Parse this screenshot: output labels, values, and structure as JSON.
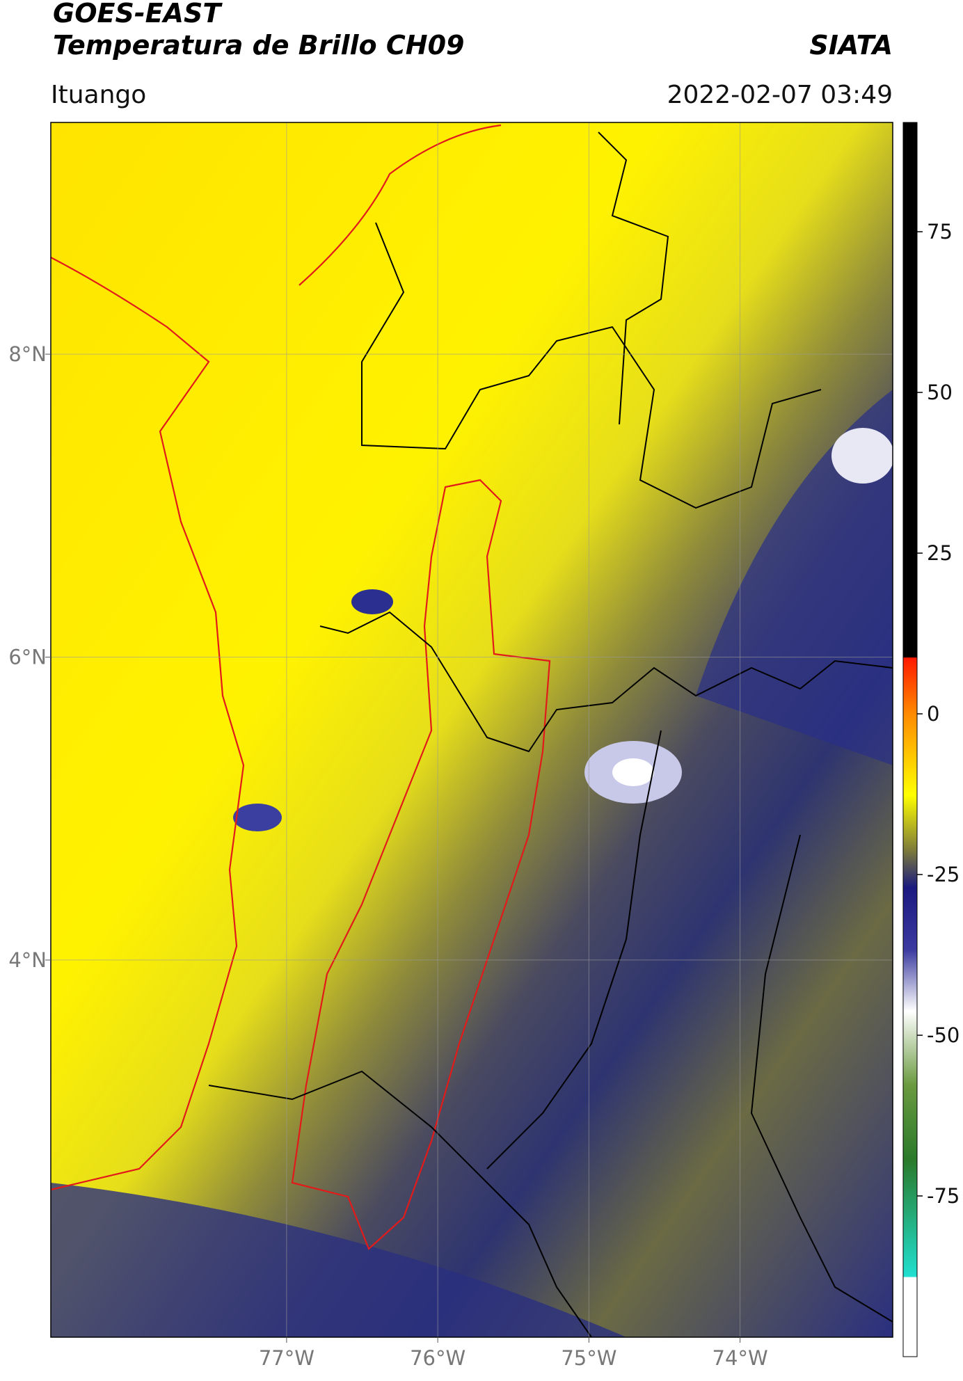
{
  "header": {
    "title": "GOES-EAST",
    "subtitle": "Temperatura de Brillo CH09",
    "source": "SIATA",
    "location": "Ituango",
    "datetime": "2022-02-07 03:49"
  },
  "map": {
    "xlim": [
      -78.56,
      -72.99
    ],
    "ylim": [
      1.51,
      9.53
    ],
    "xticks": [
      {
        "value": -77,
        "label": "77°W"
      },
      {
        "value": -76,
        "label": "76°W"
      },
      {
        "value": -75,
        "label": "75°W"
      },
      {
        "value": -74,
        "label": "74°W"
      }
    ],
    "yticks": [
      {
        "value": 8,
        "label": "8°N"
      },
      {
        "value": 6,
        "label": "6°N"
      },
      {
        "value": 4,
        "label": "4°N"
      }
    ],
    "grid": true
  },
  "colorbar": {
    "lim": [
      -100,
      92
    ],
    "ticks": [
      75,
      50,
      25,
      0,
      -25,
      -50,
      -75
    ]
  }
}
